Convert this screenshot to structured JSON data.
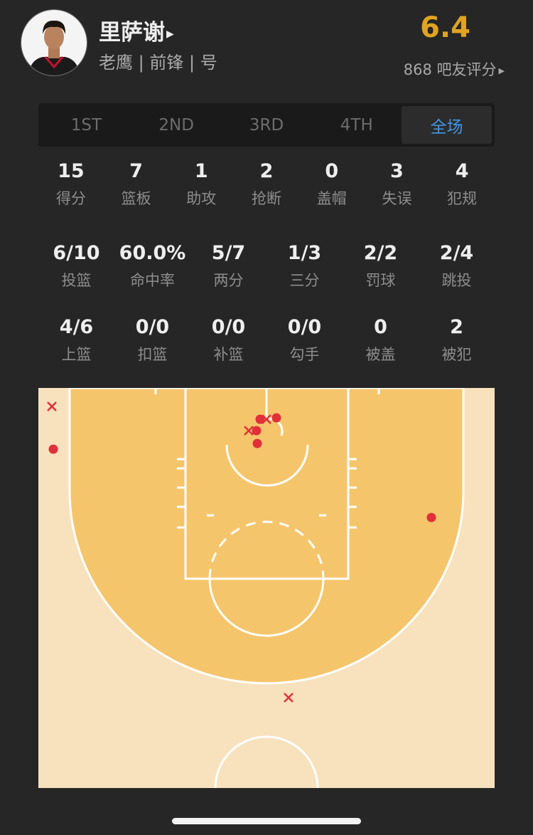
{
  "player": {
    "name": "里萨谢",
    "team": "老鹰",
    "position": "前锋",
    "number_label": "号",
    "separator": "|",
    "rating": "6.4",
    "rating_votes": "868 吧友评分",
    "arrow_icon": "triangle-right-icon"
  },
  "period_tabs": [
    {
      "label": "1ST",
      "active": false
    },
    {
      "label": "2ND",
      "active": false
    },
    {
      "label": "3RD",
      "active": false
    },
    {
      "label": "4TH",
      "active": false
    },
    {
      "label": "全场",
      "active": true
    }
  ],
  "stats_main": [
    {
      "value": "15",
      "label": "得分"
    },
    {
      "value": "7",
      "label": "篮板"
    },
    {
      "value": "1",
      "label": "助攻"
    },
    {
      "value": "2",
      "label": "抢断"
    },
    {
      "value": "0",
      "label": "盖帽"
    },
    {
      "value": "3",
      "label": "失误"
    },
    {
      "value": "4",
      "label": "犯规"
    }
  ],
  "stats_shooting": [
    {
      "value": "6/10",
      "label": "投篮"
    },
    {
      "value": "60.0%",
      "label": "命中率"
    },
    {
      "value": "5/7",
      "label": "两分"
    },
    {
      "value": "1/3",
      "label": "三分"
    },
    {
      "value": "2/2",
      "label": "罚球"
    },
    {
      "value": "2/4",
      "label": "跳投"
    }
  ],
  "stats_detail": [
    {
      "value": "4/6",
      "label": "上篮"
    },
    {
      "value": "0/0",
      "label": "扣篮"
    },
    {
      "value": "0/0",
      "label": "补篮"
    },
    {
      "value": "0/0",
      "label": "勾手"
    },
    {
      "value": "0",
      "label": "被盖"
    },
    {
      "value": "2",
      "label": "被犯"
    }
  ],
  "shot_chart": {
    "shots": [
      "made",
      "made",
      "made",
      "made",
      "made",
      "made",
      "missed",
      "missed",
      "missed",
      "missed"
    ],
    "colors": {
      "made": "#e0303a",
      "missed": "#e0303a",
      "court_outer": "#f8e1bd",
      "court_inner": "#f5c56c",
      "lines": "#ffffff"
    }
  }
}
